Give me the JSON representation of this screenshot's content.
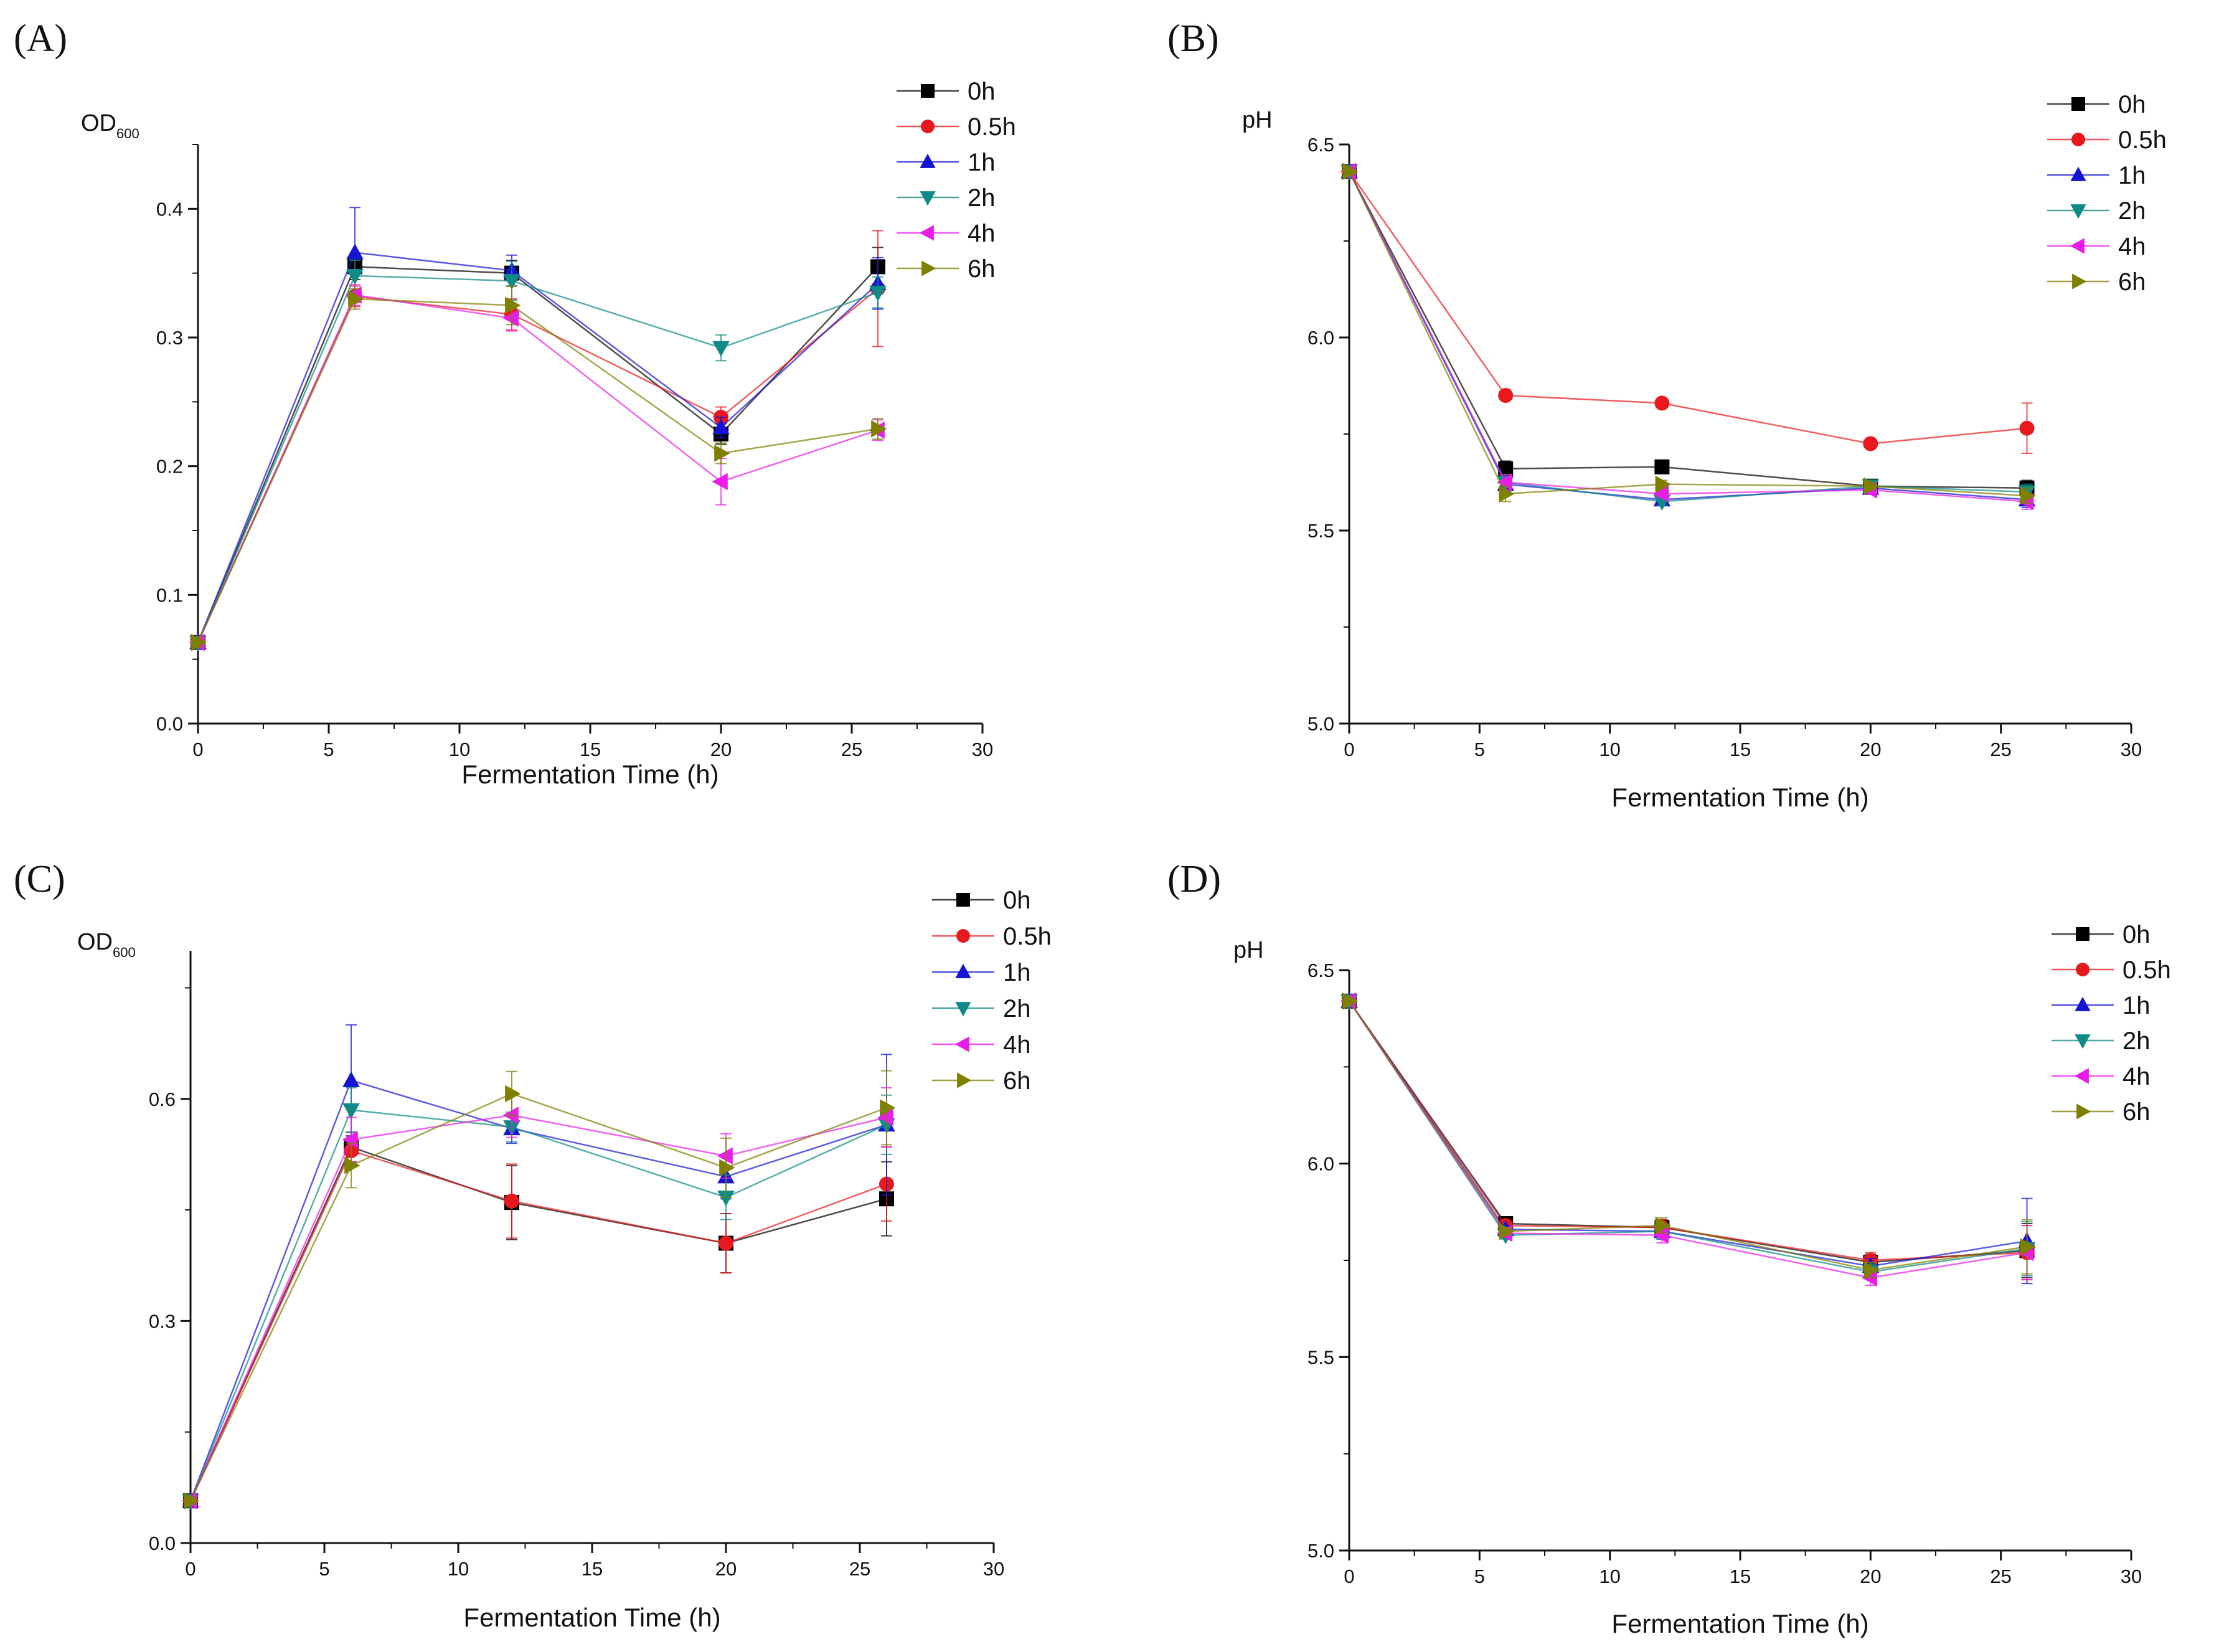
{
  "figure_labels": [
    "(A)",
    "(B)",
    "(C)",
    "(D)"
  ],
  "colors": {
    "0h": "#000000",
    "0.5h": "#e8191e",
    "1h": "#1414d2",
    "2h": "#0f8a86",
    "4h": "#e81ee8",
    "6h": "#7f7f00",
    "axis": "#111111"
  },
  "chart_data": [
    {
      "id": "A",
      "type": "line",
      "title": "(A)",
      "xlabel": "Fermentation Time (h)",
      "ylabel": "OD",
      "ylabel_sub": "600",
      "xlim": [
        0,
        30
      ],
      "ylim": [
        0.0,
        0.45
      ],
      "xticks": [
        0,
        5,
        10,
        15,
        20,
        25,
        30
      ],
      "yticks": [
        0.0,
        0.1,
        0.2,
        0.3,
        0.4
      ],
      "xtick_labels": [
        "0",
        "5",
        "10",
        "15",
        "20",
        "25",
        "30"
      ],
      "ytick_labels": [
        "0.0",
        "0.1",
        "0.2",
        "0.3",
        "0.4"
      ],
      "legend_loc": "top-right",
      "x": [
        0,
        6,
        12,
        20,
        26
      ],
      "series": [
        {
          "name": "0h",
          "marker": "square",
          "values": [
            0.063,
            0.355,
            0.35,
            0.225,
            0.355
          ],
          "errors": [
            0.004,
            0.01,
            0.01,
            0.008,
            0.015
          ]
        },
        {
          "name": "0.5h",
          "marker": "circle",
          "values": [
            0.063,
            0.332,
            0.318,
            0.238,
            0.338
          ],
          "errors": [
            0.004,
            0.008,
            0.012,
            0.008,
            0.045
          ]
        },
        {
          "name": "1h",
          "marker": "triangle-up",
          "values": [
            0.063,
            0.366,
            0.352,
            0.23,
            0.342
          ],
          "errors": [
            0.004,
            0.035,
            0.012,
            0.008,
            0.02
          ]
        },
        {
          "name": "2h",
          "marker": "triangle-down",
          "values": [
            0.063,
            0.348,
            0.344,
            0.292,
            0.335
          ],
          "errors": [
            0.004,
            0.012,
            0.015,
            0.01,
            0.012
          ]
        },
        {
          "name": "4h",
          "marker": "triangle-left",
          "values": [
            0.063,
            0.333,
            0.315,
            0.188,
            0.228
          ],
          "errors": [
            0.004,
            0.008,
            0.01,
            0.018,
            0.008
          ]
        },
        {
          "name": "6h",
          "marker": "triangle-right",
          "values": [
            0.063,
            0.33,
            0.325,
            0.21,
            0.229
          ],
          "errors": [
            0.004,
            0.008,
            0.015,
            0.008,
            0.008
          ]
        }
      ]
    },
    {
      "id": "B",
      "type": "line",
      "title": "(B)",
      "xlabel": "Fermentation Time (h)",
      "ylabel": "pH",
      "ylabel_sub": "",
      "xlim": [
        0,
        30
      ],
      "ylim": [
        5.0,
        6.5
      ],
      "xticks": [
        0,
        5,
        10,
        15,
        20,
        25,
        30
      ],
      "yticks": [
        5.0,
        5.5,
        6.0,
        6.5
      ],
      "xtick_labels": [
        "0",
        "5",
        "10",
        "15",
        "20",
        "25",
        "30"
      ],
      "ytick_labels": [
        "5.0",
        "5.5",
        "6.0",
        "6.5"
      ],
      "legend_loc": "top-right",
      "x": [
        0,
        6,
        12,
        20,
        26
      ],
      "series": [
        {
          "name": "0h",
          "marker": "square",
          "values": [
            6.43,
            5.66,
            5.665,
            5.615,
            5.61
          ],
          "errors": [
            0.01,
            0.02,
            0.01,
            0.01,
            0.02
          ]
        },
        {
          "name": "0.5h",
          "marker": "circle",
          "values": [
            6.43,
            5.85,
            5.83,
            5.725,
            5.765
          ],
          "errors": [
            0.01,
            0.01,
            0.01,
            0.01,
            0.065
          ]
        },
        {
          "name": "1h",
          "marker": "triangle-up",
          "values": [
            6.43,
            5.62,
            5.58,
            5.61,
            5.58
          ],
          "errors": [
            0.01,
            0.02,
            0.01,
            0.01,
            0.02
          ]
        },
        {
          "name": "2h",
          "marker": "triangle-down",
          "values": [
            6.43,
            5.625,
            5.575,
            5.615,
            5.6
          ],
          "errors": [
            0.01,
            0.02,
            0.01,
            0.01,
            0.02
          ]
        },
        {
          "name": "4h",
          "marker": "triangle-left",
          "values": [
            6.43,
            5.625,
            5.595,
            5.605,
            5.575
          ],
          "errors": [
            0.01,
            0.02,
            0.01,
            0.01,
            0.02
          ]
        },
        {
          "name": "6h",
          "marker": "triangle-right",
          "values": [
            6.43,
            5.595,
            5.62,
            5.615,
            5.59
          ],
          "errors": [
            0.01,
            0.02,
            0.01,
            0.01,
            0.02
          ]
        }
      ]
    },
    {
      "id": "C",
      "type": "line",
      "title": "(C)",
      "xlabel": "Fermentation Time (h)",
      "ylabel": "OD",
      "ylabel_sub": "600",
      "xlim": [
        0,
        30
      ],
      "ylim": [
        0.0,
        0.8
      ],
      "xticks": [
        0,
        5,
        10,
        15,
        20,
        25,
        30
      ],
      "yticks": [
        0.0,
        0.3,
        0.6
      ],
      "xtick_labels": [
        "0",
        "5",
        "10",
        "15",
        "20",
        "25",
        "30"
      ],
      "ytick_labels": [
        "0.0",
        "0.3",
        "0.6"
      ],
      "legend_loc": "top-right",
      "x": [
        0,
        6,
        12,
        20,
        26
      ],
      "series": [
        {
          "name": "0h",
          "marker": "square",
          "values": [
            0.057,
            0.535,
            0.46,
            0.405,
            0.465
          ],
          "errors": [
            0.005,
            0.02,
            0.05,
            0.04,
            0.05
          ]
        },
        {
          "name": "0.5h",
          "marker": "circle",
          "values": [
            0.057,
            0.53,
            0.462,
            0.405,
            0.485
          ],
          "errors": [
            0.005,
            0.02,
            0.05,
            0.04,
            0.05
          ]
        },
        {
          "name": "1h",
          "marker": "triangle-up",
          "values": [
            0.057,
            0.625,
            0.56,
            0.495,
            0.565
          ],
          "errors": [
            0.005,
            0.075,
            0.02,
            0.03,
            0.095
          ]
        },
        {
          "name": "2h",
          "marker": "triangle-down",
          "values": [
            0.057,
            0.585,
            0.562,
            0.467,
            0.565
          ],
          "errors": [
            0.005,
            0.03,
            0.02,
            0.03,
            0.04
          ]
        },
        {
          "name": "4h",
          "marker": "triangle-left",
          "values": [
            0.057,
            0.545,
            0.578,
            0.523,
            0.575
          ],
          "errors": [
            0.005,
            0.03,
            0.03,
            0.03,
            0.04
          ]
        },
        {
          "name": "6h",
          "marker": "triangle-right",
          "values": [
            0.057,
            0.51,
            0.607,
            0.507,
            0.588
          ],
          "errors": [
            0.005,
            0.03,
            0.03,
            0.04,
            0.05
          ]
        }
      ]
    },
    {
      "id": "D",
      "type": "line",
      "title": "(D)",
      "xlabel": "Fermentation Time (h)",
      "ylabel": "pH",
      "ylabel_sub": "",
      "xlim": [
        0,
        30
      ],
      "ylim": [
        5.0,
        6.5
      ],
      "xticks": [
        0,
        5,
        10,
        15,
        20,
        25,
        30
      ],
      "yticks": [
        5.0,
        5.5,
        6.0,
        6.5
      ],
      "xtick_labels": [
        "0",
        "5",
        "10",
        "15",
        "20",
        "25",
        "30"
      ],
      "ytick_labels": [
        "5.0",
        "5.5",
        "6.0",
        "6.5"
      ],
      "legend_loc": "top-right",
      "x": [
        0,
        6,
        12,
        20,
        26
      ],
      "series": [
        {
          "name": "0h",
          "marker": "square",
          "values": [
            6.42,
            5.845,
            5.835,
            5.745,
            5.775
          ],
          "errors": [
            0.01,
            0.01,
            0.02,
            0.02,
            0.07
          ]
        },
        {
          "name": "0.5h",
          "marker": "circle",
          "values": [
            6.42,
            5.84,
            5.835,
            5.75,
            5.77
          ],
          "errors": [
            0.01,
            0.01,
            0.02,
            0.02,
            0.07
          ]
        },
        {
          "name": "1h",
          "marker": "triangle-up",
          "values": [
            6.42,
            5.83,
            5.825,
            5.735,
            5.8
          ],
          "errors": [
            0.01,
            0.01,
            0.02,
            0.02,
            0.11
          ]
        },
        {
          "name": "2h",
          "marker": "triangle-down",
          "values": [
            6.42,
            5.815,
            5.825,
            5.72,
            5.78
          ],
          "errors": [
            0.01,
            0.01,
            0.02,
            0.02,
            0.07
          ]
        },
        {
          "name": "4h",
          "marker": "triangle-left",
          "values": [
            6.42,
            5.82,
            5.815,
            5.705,
            5.77
          ],
          "errors": [
            0.01,
            0.01,
            0.02,
            0.02,
            0.07
          ]
        },
        {
          "name": "6h",
          "marker": "triangle-right",
          "values": [
            6.42,
            5.825,
            5.84,
            5.725,
            5.785
          ],
          "errors": [
            0.01,
            0.01,
            0.02,
            0.02,
            0.07
          ]
        }
      ]
    }
  ]
}
